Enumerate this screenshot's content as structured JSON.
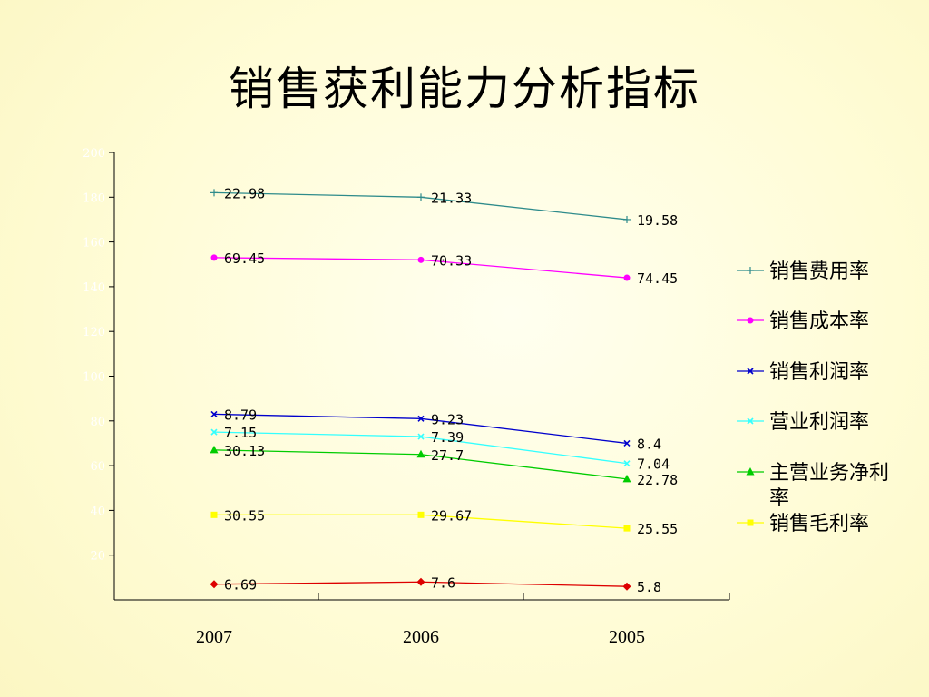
{
  "title": "销售获利能力分析指标",
  "chart_data": {
    "type": "line",
    "title": "销售获利能力分析指标",
    "categories": [
      "2007",
      "2006",
      "2005"
    ],
    "ylim": [
      0,
      200
    ],
    "yticks": [
      20,
      40,
      60,
      80,
      100,
      120,
      140,
      160,
      180,
      200
    ],
    "grid": false,
    "legend_position": "right",
    "series": [
      {
        "name": "销售费用率",
        "labels": [
          "22.98",
          "21.33",
          "19.58"
        ],
        "values": [
          182,
          180,
          170
        ],
        "color": "#2e8b8b",
        "marker": "plus"
      },
      {
        "name": "销售成本率",
        "labels": [
          "69.45",
          "70.33",
          "74.45"
        ],
        "values": [
          153,
          152,
          144
        ],
        "color": "#ff00ff",
        "marker": "circle"
      },
      {
        "name": "销售利润率",
        "labels": [
          "8.79",
          "9.23",
          "8.4"
        ],
        "values": [
          83,
          81,
          70
        ],
        "color": "#0000cc",
        "marker": "x"
      },
      {
        "name": "营业利润率",
        "labels": [
          "7.15",
          "7.39",
          "7.04"
        ],
        "values": [
          75,
          73,
          61
        ],
        "color": "#33ffff",
        "marker": "x"
      },
      {
        "name": "主营业务净利率",
        "labels": [
          "30.13",
          "27.7",
          "22.78"
        ],
        "values": [
          67,
          65,
          54
        ],
        "color": "#00cc00",
        "marker": "triangle"
      },
      {
        "name": "销售毛利率",
        "labels": [
          "30.55",
          "29.67",
          "25.55"
        ],
        "values": [
          38,
          38,
          32
        ],
        "color": "#ffff00",
        "marker": "square"
      },
      {
        "name": "",
        "labels": [
          "6.69",
          "7.6",
          "5.8"
        ],
        "values": [
          7,
          8,
          6
        ],
        "color": "#dd0000",
        "marker": "diamond"
      }
    ]
  }
}
